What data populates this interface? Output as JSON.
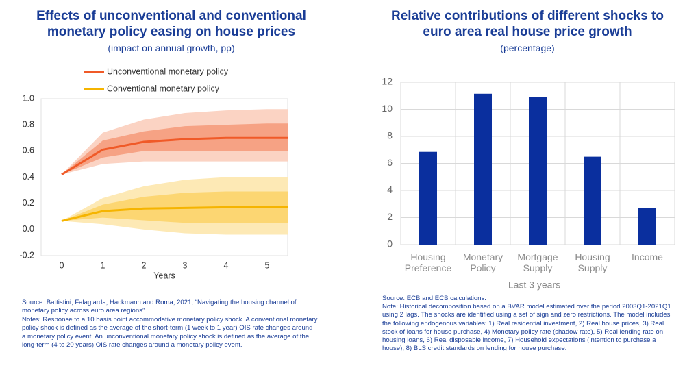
{
  "chart_data": [
    {
      "type": "line",
      "title": "Effects of unconventional and conventional monetary policy easing on house prices",
      "subtitle": "(impact on annual growth, pp)",
      "xlabel": "Years",
      "x": [
        0,
        1,
        2,
        3,
        4,
        5,
        5.5
      ],
      "xlim": [
        -0.5,
        5.5
      ],
      "xticks": [
        0,
        1,
        2,
        3,
        4,
        5
      ],
      "ylim": [
        -0.2,
        1.0
      ],
      "yticks": [
        {
          "value": -0.2,
          "label": "-0.2"
        },
        {
          "value": 0,
          "label": "0.0"
        },
        0.2,
        0.4,
        0.6,
        0.8,
        {
          "value": 1,
          "label": "1.0"
        }
      ],
      "grid": false,
      "legend": "top",
      "series": [
        {
          "name": "Unconventional monetary policy",
          "color": "#f05a28",
          "values": [
            0.42,
            0.61,
            0.67,
            0.69,
            0.7,
            0.7,
            0.7
          ],
          "bands": [
            {
              "color": "#fbd3c3",
              "lower": [
                0.42,
                0.5,
                0.52,
                0.52,
                0.52,
                0.52,
                0.52
              ],
              "upper": [
                0.42,
                0.74,
                0.84,
                0.89,
                0.91,
                0.92,
                0.92
              ]
            },
            {
              "color": "#f6a284",
              "lower": [
                0.42,
                0.55,
                0.6,
                0.6,
                0.6,
                0.6,
                0.6
              ],
              "upper": [
                0.42,
                0.68,
                0.75,
                0.79,
                0.8,
                0.81,
                0.81
              ]
            }
          ]
        },
        {
          "name": "Conventional monetary policy",
          "color": "#f5b400",
          "values": [
            0.065,
            0.14,
            0.16,
            0.165,
            0.17,
            0.17,
            0.17
          ],
          "bands": [
            {
              "color": "#fde9b5",
              "lower": [
                0.065,
                0.04,
                0.0,
                -0.03,
                -0.04,
                -0.04,
                -0.04
              ],
              "upper": [
                0.065,
                0.24,
                0.33,
                0.38,
                0.4,
                0.4,
                0.4
              ]
            },
            {
              "color": "#fcd672",
              "lower": [
                0.065,
                0.09,
                0.07,
                0.05,
                0.05,
                0.05,
                0.05
              ],
              "upper": [
                0.065,
                0.19,
                0.25,
                0.28,
                0.29,
                0.29,
                0.29
              ]
            }
          ]
        }
      ],
      "source": "Source: Battistini, Falagiarda, Hackmann and Roma, 2021, “Navigating the housing channel of monetary policy across euro area regions”.",
      "notes": "Notes: Response to a 10 basis point accommodative monetary policy shock. A conventional monetary policy shock is defined as the average of the short-term (1 week to 1 year) OIS rate changes around a monetary policy event. An unconventional monetary policy shock is defined as the average of the long-term (4 to 20 years) OIS rate changes around a monetary policy event."
    },
    {
      "type": "bar",
      "title": "Relative contributions of different shocks to euro area real house price growth",
      "subtitle": "(percentage)",
      "xlabel": "Last 3 years",
      "categories": [
        "Housing Preference",
        "Monetary Policy",
        "Mortgage Supply",
        "Housing Supply",
        "Income"
      ],
      "values": [
        6.85,
        11.15,
        10.9,
        6.5,
        2.7
      ],
      "color": "#0a2f9e",
      "ylim": [
        0,
        12
      ],
      "yticks": [
        0,
        2,
        4,
        6,
        8,
        10,
        12
      ],
      "grid": true,
      "source": "Source: ECB and ECB calculations.",
      "notes": "Note: Historical decomposition based on a BVAR model estimated over the period 2003Q1-2021Q1 using 2 lags. The shocks are identified using a set of sign and zero restrictions. The model includes the following endogenous variables: 1) Real residential investment, 2) Real house prices, 3) Real stock of loans for house purchase, 4) Monetary policy rate (shadow rate), 5) Real lending rate on housing loans, 6) Real disposable income, 7) Household expectations (intention to purchase a house), 8) BLS credit standards on lending for house purchase."
    }
  ]
}
